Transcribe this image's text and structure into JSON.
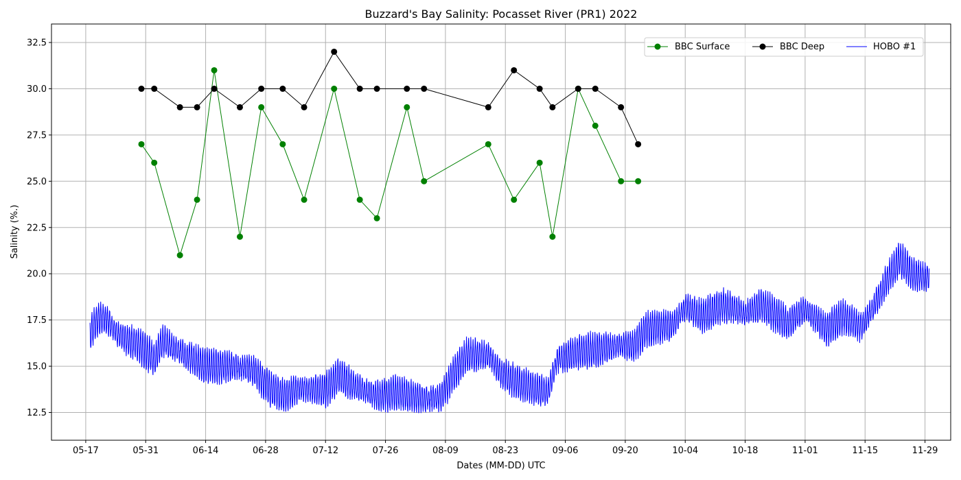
{
  "chart_data": {
    "type": "line",
    "title": "Buzzard's Bay Salinity: Pocasset River (PR1) 2022",
    "xlabel": "Dates (MM-DD) UTC",
    "ylabel": "Salinity (%.)",
    "x_ticks": [
      "05-17",
      "05-31",
      "06-14",
      "06-28",
      "07-12",
      "07-26",
      "08-09",
      "08-23",
      "09-06",
      "09-20",
      "10-04",
      "10-18",
      "11-01",
      "11-15",
      "11-29"
    ],
    "y_ticks": [
      "12.5",
      "15.0",
      "17.5",
      "20.0",
      "22.5",
      "25.0",
      "27.5",
      "30.0",
      "32.5"
    ],
    "xlim": [
      "2022-05-09",
      "2022-12-05"
    ],
    "ylim": [
      11.0,
      33.5
    ],
    "grid": true,
    "legend_position": "top-right",
    "series": [
      {
        "name": "BBC Surface",
        "color": "#008000",
        "marker": "circle",
        "points": [
          {
            "x": "2022-05-30",
            "y": 27
          },
          {
            "x": "2022-06-02",
            "y": 26
          },
          {
            "x": "2022-06-08",
            "y": 21
          },
          {
            "x": "2022-06-12",
            "y": 24
          },
          {
            "x": "2022-06-16",
            "y": 31
          },
          {
            "x": "2022-06-22",
            "y": 22
          },
          {
            "x": "2022-06-27",
            "y": 29
          },
          {
            "x": "2022-07-02",
            "y": 27
          },
          {
            "x": "2022-07-07",
            "y": 24
          },
          {
            "x": "2022-07-14",
            "y": 30
          },
          {
            "x": "2022-07-20",
            "y": 24
          },
          {
            "x": "2022-07-24",
            "y": 23
          },
          {
            "x": "2022-07-31",
            "y": 29
          },
          {
            "x": "2022-08-04",
            "y": 25
          },
          {
            "x": "2022-08-19",
            "y": 27
          },
          {
            "x": "2022-08-25",
            "y": 24
          },
          {
            "x": "2022-08-31",
            "y": 26
          },
          {
            "x": "2022-09-03",
            "y": 22
          },
          {
            "x": "2022-09-09",
            "y": 30
          },
          {
            "x": "2022-09-13",
            "y": 28
          },
          {
            "x": "2022-09-19",
            "y": 25
          },
          {
            "x": "2022-09-23",
            "y": 25
          }
        ]
      },
      {
        "name": "BBC Deep",
        "color": "#000000",
        "marker": "circle",
        "points": [
          {
            "x": "2022-05-30",
            "y": 30
          },
          {
            "x": "2022-06-02",
            "y": 30
          },
          {
            "x": "2022-06-08",
            "y": 29
          },
          {
            "x": "2022-06-12",
            "y": 29
          },
          {
            "x": "2022-06-16",
            "y": 30
          },
          {
            "x": "2022-06-22",
            "y": 29
          },
          {
            "x": "2022-06-27",
            "y": 30
          },
          {
            "x": "2022-07-02",
            "y": 30
          },
          {
            "x": "2022-07-07",
            "y": 29
          },
          {
            "x": "2022-07-14",
            "y": 32
          },
          {
            "x": "2022-07-20",
            "y": 30
          },
          {
            "x": "2022-07-24",
            "y": 30
          },
          {
            "x": "2022-07-31",
            "y": 30
          },
          {
            "x": "2022-08-04",
            "y": 30
          },
          {
            "x": "2022-08-19",
            "y": 29
          },
          {
            "x": "2022-08-25",
            "y": 31
          },
          {
            "x": "2022-08-31",
            "y": 30
          },
          {
            "x": "2022-09-03",
            "y": 29
          },
          {
            "x": "2022-09-09",
            "y": 30
          },
          {
            "x": "2022-09-13",
            "y": 30
          },
          {
            "x": "2022-09-19",
            "y": 29
          },
          {
            "x": "2022-09-23",
            "y": 27
          }
        ]
      },
      {
        "name": "HOBO #1",
        "color": "#0000ff",
        "marker": "none",
        "baseline_points": [
          {
            "x": "2022-05-18",
            "y": 16.8
          },
          {
            "x": "2022-05-20",
            "y": 17.6
          },
          {
            "x": "2022-05-22",
            "y": 17.5
          },
          {
            "x": "2022-05-25",
            "y": 16.6
          },
          {
            "x": "2022-05-29",
            "y": 16.2
          },
          {
            "x": "2022-06-02",
            "y": 15.4
          },
          {
            "x": "2022-06-04",
            "y": 16.4
          },
          {
            "x": "2022-06-08",
            "y": 15.8
          },
          {
            "x": "2022-06-14",
            "y": 15.0
          },
          {
            "x": "2022-06-20",
            "y": 15.0
          },
          {
            "x": "2022-06-25",
            "y": 14.8
          },
          {
            "x": "2022-06-29",
            "y": 13.8
          },
          {
            "x": "2022-07-02",
            "y": 13.4
          },
          {
            "x": "2022-07-06",
            "y": 13.8
          },
          {
            "x": "2022-07-12",
            "y": 13.7
          },
          {
            "x": "2022-07-15",
            "y": 14.5
          },
          {
            "x": "2022-07-19",
            "y": 13.9
          },
          {
            "x": "2022-07-24",
            "y": 13.4
          },
          {
            "x": "2022-07-29",
            "y": 13.6
          },
          {
            "x": "2022-08-04",
            "y": 13.2
          },
          {
            "x": "2022-08-08",
            "y": 13.3
          },
          {
            "x": "2022-08-11",
            "y": 14.6
          },
          {
            "x": "2022-08-14",
            "y": 15.6
          },
          {
            "x": "2022-08-19",
            "y": 15.6
          },
          {
            "x": "2022-08-22",
            "y": 14.6
          },
          {
            "x": "2022-08-27",
            "y": 14.0
          },
          {
            "x": "2022-09-02",
            "y": 13.6
          },
          {
            "x": "2022-09-04",
            "y": 15.3
          },
          {
            "x": "2022-09-09",
            "y": 15.8
          },
          {
            "x": "2022-09-14",
            "y": 15.9
          },
          {
            "x": "2022-09-18",
            "y": 16.1
          },
          {
            "x": "2022-09-22",
            "y": 16.1
          },
          {
            "x": "2022-09-25",
            "y": 17.0
          },
          {
            "x": "2022-10-01",
            "y": 17.2
          },
          {
            "x": "2022-10-04",
            "y": 18.2
          },
          {
            "x": "2022-10-08",
            "y": 17.7
          },
          {
            "x": "2022-10-13",
            "y": 18.3
          },
          {
            "x": "2022-10-18",
            "y": 17.9
          },
          {
            "x": "2022-10-22",
            "y": 18.3
          },
          {
            "x": "2022-10-28",
            "y": 17.3
          },
          {
            "x": "2022-11-01",
            "y": 18.1
          },
          {
            "x": "2022-11-06",
            "y": 17.0
          },
          {
            "x": "2022-11-10",
            "y": 17.7
          },
          {
            "x": "2022-11-14",
            "y": 17.1
          },
          {
            "x": "2022-11-17",
            "y": 18.2
          },
          {
            "x": "2022-11-20",
            "y": 19.6
          },
          {
            "x": "2022-11-23",
            "y": 20.8
          },
          {
            "x": "2022-11-26",
            "y": 20.0
          },
          {
            "x": "2022-11-30",
            "y": 19.8
          }
        ],
        "tidal_amplitude": 0.9
      }
    ]
  }
}
